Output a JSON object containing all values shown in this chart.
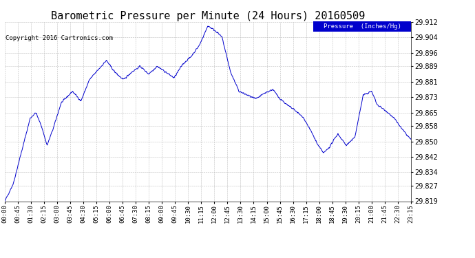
{
  "title": "Barometric Pressure per Minute (24 Hours) 20160509",
  "copyright": "Copyright 2016 Cartronics.com",
  "legend_label": "Pressure  (Inches/Hg)",
  "line_color": "#0000CC",
  "background_color": "#ffffff",
  "grid_color": "#bbbbbb",
  "legend_bg": "#0000CC",
  "legend_fg": "#ffffff",
  "ylim_min": 29.819,
  "ylim_max": 29.912,
  "yticks": [
    29.819,
    29.827,
    29.834,
    29.842,
    29.85,
    29.858,
    29.865,
    29.873,
    29.881,
    29.889,
    29.896,
    29.904,
    29.912
  ],
  "xtick_labels": [
    "00:00",
    "00:45",
    "01:30",
    "02:15",
    "03:00",
    "03:45",
    "04:30",
    "05:15",
    "06:00",
    "06:45",
    "07:30",
    "08:15",
    "09:00",
    "09:45",
    "10:30",
    "11:15",
    "12:00",
    "12:45",
    "13:30",
    "14:15",
    "15:00",
    "15:45",
    "16:30",
    "17:15",
    "18:00",
    "18:45",
    "19:30",
    "20:15",
    "21:00",
    "21:45",
    "22:30",
    "23:15"
  ],
  "title_fontsize": 11,
  "axis_fontsize": 6.5,
  "ytick_fontsize": 7,
  "copyright_fontsize": 6.5,
  "waypoints_x": [
    0,
    30,
    60,
    90,
    110,
    130,
    150,
    170,
    200,
    240,
    270,
    300,
    330,
    360,
    390,
    420,
    450,
    480,
    510,
    540,
    570,
    600,
    630,
    660,
    690,
    720,
    750,
    770,
    800,
    830,
    860,
    890,
    920,
    950,
    970,
    1000,
    1030,
    1060,
    1090,
    1110,
    1130,
    1150,
    1180,
    1210,
    1240,
    1270,
    1300,
    1320,
    1350,
    1380,
    1410,
    1439
  ],
  "waypoints_y": [
    29.819,
    29.828,
    29.845,
    29.862,
    29.865,
    29.858,
    29.848,
    29.856,
    29.87,
    29.876,
    29.871,
    29.882,
    29.887,
    29.892,
    29.886,
    29.882,
    29.886,
    29.889,
    29.885,
    29.889,
    29.886,
    29.883,
    29.89,
    29.894,
    29.9,
    29.91,
    29.907,
    29.904,
    29.886,
    29.876,
    29.874,
    29.872,
    29.875,
    29.877,
    29.873,
    29.869,
    29.866,
    29.862,
    29.854,
    29.848,
    29.844,
    29.847,
    29.854,
    29.848,
    29.852,
    29.874,
    29.876,
    29.869,
    29.866,
    29.862,
    29.856,
    29.851
  ]
}
